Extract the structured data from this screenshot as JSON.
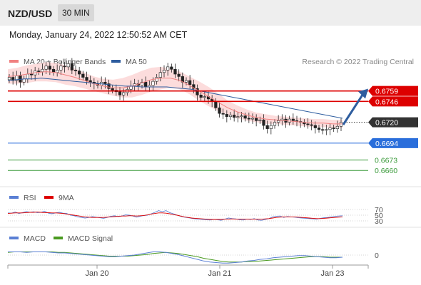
{
  "header": {
    "symbol": "NZD/USD",
    "timeframe": "30 MIN",
    "datetime": "Monday, January 24, 2022 12:50:52 AM CET"
  },
  "chart_data": [
    {
      "type": "candlestick",
      "title": "",
      "legend": [
        {
          "name": "MA 20 + Bollinger Bands",
          "color": "#f08080"
        },
        {
          "name": "MA 50",
          "color": "#2e5d9f"
        }
      ],
      "watermark": "Research © 2022 Trading Central",
      "price_range": [
        0.6646,
        0.6788
      ],
      "x_ticks": [
        "Jan 20",
        "Jan 21",
        "Jan 23"
      ],
      "levels": [
        {
          "label": "0.6759",
          "value": 0.6759,
          "color": "#dd0000",
          "style": "solid",
          "box": true
        },
        {
          "label": "0.6746",
          "value": 0.6746,
          "color": "#dd0000",
          "style": "solid",
          "box": true
        },
        {
          "label": "0.6720",
          "value": 0.672,
          "color": "#333333",
          "style": "dotted",
          "box": true
        },
        {
          "label": "0.6694",
          "value": 0.6694,
          "color": "#2a6edb",
          "style": "solid",
          "box": true
        },
        {
          "label": "0.6673",
          "value": 0.6673,
          "color": "#3a9a3a",
          "style": "solid",
          "box": false
        },
        {
          "label": "0.6660",
          "value": 0.666,
          "color": "#3a9a3a",
          "style": "solid",
          "box": false
        }
      ],
      "last_price": 0.672,
      "projection_arrow": {
        "from": 0.6717,
        "to": 0.676,
        "color": "#2e5d9f"
      },
      "closes": [
        0.6776,
        0.6772,
        0.6778,
        0.677,
        0.6774,
        0.678,
        0.6779,
        0.6784,
        0.6783,
        0.6786,
        0.679,
        0.6786,
        0.6782,
        0.6785,
        0.679,
        0.6789,
        0.6793,
        0.6785,
        0.6784,
        0.678,
        0.6776,
        0.6772,
        0.677,
        0.6768,
        0.6766,
        0.677,
        0.6768,
        0.6762,
        0.676,
        0.6758,
        0.6754,
        0.6757,
        0.6761,
        0.6765,
        0.6768,
        0.6766,
        0.677,
        0.6764,
        0.6766,
        0.6771,
        0.6776,
        0.6782,
        0.6785,
        0.6789,
        0.6786,
        0.678,
        0.6777,
        0.677,
        0.6772,
        0.6767,
        0.6762,
        0.6754,
        0.6751,
        0.6752,
        0.6749,
        0.6746,
        0.6738,
        0.6731,
        0.673,
        0.6727,
        0.6729,
        0.6726,
        0.6727,
        0.6728,
        0.6725,
        0.6724,
        0.6725,
        0.6722,
        0.6723,
        0.6716,
        0.6712,
        0.6716,
        0.672,
        0.6722,
        0.6724,
        0.672,
        0.6724,
        0.6722,
        0.6721,
        0.672,
        0.6718,
        0.6717,
        0.6716,
        0.6713,
        0.6711,
        0.671,
        0.6711,
        0.6713,
        0.6712,
        0.6715,
        0.672
      ],
      "ma50": [
        0.6772,
        0.6773,
        0.6774,
        0.6774,
        0.6775,
        0.6774,
        0.6773,
        0.6772,
        0.6771,
        0.677,
        0.6769,
        0.6768,
        0.6767,
        0.6766,
        0.6765,
        0.6765,
        0.6764,
        0.6764,
        0.6764,
        0.6764,
        0.6763,
        0.6762,
        0.6761,
        0.6759,
        0.6757,
        0.6755,
        0.6753,
        0.6751,
        0.6749,
        0.6747,
        0.6745,
        0.6743,
        0.6741,
        0.6739,
        0.6737,
        0.6735,
        0.6733,
        0.6731,
        0.6729,
        0.6727,
        0.6725
      ],
      "ma20": [
        0.6777,
        0.6778,
        0.678,
        0.6782,
        0.6783,
        0.6782,
        0.6779,
        0.6776,
        0.6772,
        0.6768,
        0.6765,
        0.6763,
        0.6763,
        0.6765,
        0.6769,
        0.6773,
        0.6775,
        0.6775,
        0.6772,
        0.6766,
        0.6759,
        0.6752,
        0.6745,
        0.6738,
        0.6733,
        0.6729,
        0.6726,
        0.6724,
        0.6723,
        0.6722,
        0.6721,
        0.672,
        0.6719,
        0.6719,
        0.6718,
        0.6718
      ]
    },
    {
      "type": "line",
      "title": "",
      "legend": [
        {
          "name": "RSI",
          "color": "#5a7fd4"
        },
        {
          "name": "9MA",
          "color": "#dd0000"
        }
      ],
      "y_ticks": [
        "70",
        "50",
        "30"
      ],
      "rsi": [
        58,
        57,
        61,
        56,
        59,
        63,
        60,
        62,
        59,
        60,
        64,
        57,
        55,
        58,
        60,
        57,
        56,
        50,
        48,
        44,
        42,
        40,
        42,
        45,
        43,
        41,
        39,
        42,
        46,
        48,
        45,
        47,
        51,
        50,
        47,
        43,
        46,
        49,
        50,
        55,
        60,
        66,
        62,
        66,
        59,
        55,
        50,
        46,
        43,
        41,
        39,
        37,
        36,
        35,
        34,
        33,
        35,
        34,
        32,
        36,
        40,
        38,
        37,
        34,
        33,
        36,
        35,
        38,
        33,
        32,
        35,
        38,
        44,
        46,
        47,
        42,
        45,
        44,
        43,
        41,
        40,
        39,
        38,
        37,
        36,
        39,
        41,
        42,
        44,
        46,
        47,
        48
      ],
      "rsi_ma": [
        56,
        57,
        58,
        58,
        58,
        59,
        60,
        60,
        61,
        60,
        59,
        59,
        58,
        58,
        57,
        56,
        54,
        52,
        50,
        48,
        46,
        44,
        43,
        42,
        42,
        42,
        42,
        43,
        44,
        45,
        46,
        47,
        47,
        48,
        48,
        47,
        48,
        49,
        51,
        54,
        56,
        58,
        58,
        57,
        55,
        52,
        50,
        47,
        44,
        42,
        40,
        39,
        38,
        37,
        36,
        35,
        35,
        35,
        35,
        36,
        36,
        37,
        36,
        36,
        36,
        36,
        36,
        36,
        36,
        36,
        37,
        38,
        40,
        42,
        43,
        44,
        44,
        44,
        44,
        43,
        42,
        41,
        40,
        39,
        38,
        38,
        39,
        40,
        41,
        42,
        43,
        44
      ]
    },
    {
      "type": "line",
      "title": "",
      "legend": [
        {
          "name": "MACD",
          "color": "#5a7fd4"
        },
        {
          "name": "MACD Signal",
          "color": "#4a9a20"
        }
      ],
      "y_ticks": [
        "0"
      ],
      "macd": [
        0.0006,
        0.0006,
        0.0006,
        0.0005,
        0.0006,
        0.0006,
        0.0006,
        0.0005,
        0.0004,
        0.0004,
        0.0003,
        0.0002,
        0.0001,
        0.0,
        -0.0001,
        -0.0002,
        -0.0003,
        -0.0003,
        -0.0002,
        -0.0001,
        0.0,
        0.0002,
        0.0004,
        0.0006,
        0.0006,
        0.0005,
        0.0003,
        0.0001,
        -0.0002,
        -0.0005,
        -0.0008,
        -0.0011,
        -0.0013,
        -0.0014,
        -0.0015,
        -0.0015,
        -0.0014,
        -0.0013,
        -0.0011,
        -0.001,
        -0.0008,
        -0.0007,
        -0.0005,
        -0.0004,
        -0.0003,
        -0.0002,
        -0.0001,
        -0.0001,
        -0.0002,
        -0.0003,
        -0.0004,
        -0.0005,
        -0.0005,
        -0.0004
      ],
      "signal": [
        0.0005,
        0.0006,
        0.0006,
        0.0006,
        0.0006,
        0.0006,
        0.0006,
        0.0006,
        0.0005,
        0.0005,
        0.0004,
        0.0003,
        0.0002,
        0.0001,
        0.0,
        -0.0001,
        -0.0002,
        -0.0002,
        -0.0002,
        -0.0002,
        -0.0001,
        0.0,
        0.0001,
        0.0003,
        0.0004,
        0.0005,
        0.0004,
        0.0003,
        0.0001,
        -0.0001,
        -0.0003,
        -0.0006,
        -0.0008,
        -0.001,
        -0.0012,
        -0.0013,
        -0.0013,
        -0.0013,
        -0.0012,
        -0.0012,
        -0.0011,
        -0.001,
        -0.0009,
        -0.0008,
        -0.0007,
        -0.0006,
        -0.0005,
        -0.0004,
        -0.0003,
        -0.0003,
        -0.0003,
        -0.0004,
        -0.0004,
        -0.0004
      ]
    }
  ]
}
